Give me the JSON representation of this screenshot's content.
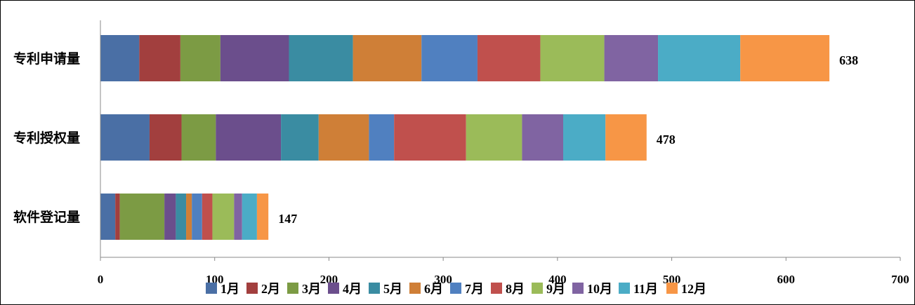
{
  "chart_data": {
    "type": "bar",
    "orientation": "horizontal",
    "stacked": true,
    "title": "",
    "xlabel": "",
    "ylabel": "",
    "xlim": [
      0,
      700
    ],
    "x_ticks": [
      0,
      100,
      200,
      300,
      400,
      500,
      600,
      700
    ],
    "grid": false,
    "legend_position": "bottom",
    "categories": [
      "专利申请量",
      "专利授权量",
      "软件登记量"
    ],
    "totals": [
      638,
      478,
      147
    ],
    "series": [
      {
        "name": "1月",
        "color": "#4a6fa5",
        "values": [
          34,
          43,
          13
        ]
      },
      {
        "name": "2月",
        "color": "#a23f3e",
        "values": [
          36,
          28,
          4
        ]
      },
      {
        "name": "3月",
        "color": "#7c9b44",
        "values": [
          35,
          30,
          39
        ]
      },
      {
        "name": "4月",
        "color": "#6b4e8c",
        "values": [
          60,
          57,
          10
        ]
      },
      {
        "name": "5月",
        "color": "#3a8ca2",
        "values": [
          56,
          33,
          9
        ]
      },
      {
        "name": "6月",
        "color": "#cf7f37",
        "values": [
          60,
          44,
          5
        ]
      },
      {
        "name": "7月",
        "color": "#5080c0",
        "values": [
          49,
          22,
          9
        ]
      },
      {
        "name": "8月",
        "color": "#c0504d",
        "values": [
          55,
          63,
          9
        ]
      },
      {
        "name": "9月",
        "color": "#9bbb59",
        "values": [
          56,
          49,
          19
        ]
      },
      {
        "name": "10月",
        "color": "#8064a2",
        "values": [
          47,
          36,
          7
        ]
      },
      {
        "name": "11月",
        "color": "#4bacc6",
        "values": [
          72,
          37,
          13
        ]
      },
      {
        "name": "12月",
        "color": "#f79646",
        "values": [
          78,
          36,
          10
        ]
      }
    ]
  }
}
